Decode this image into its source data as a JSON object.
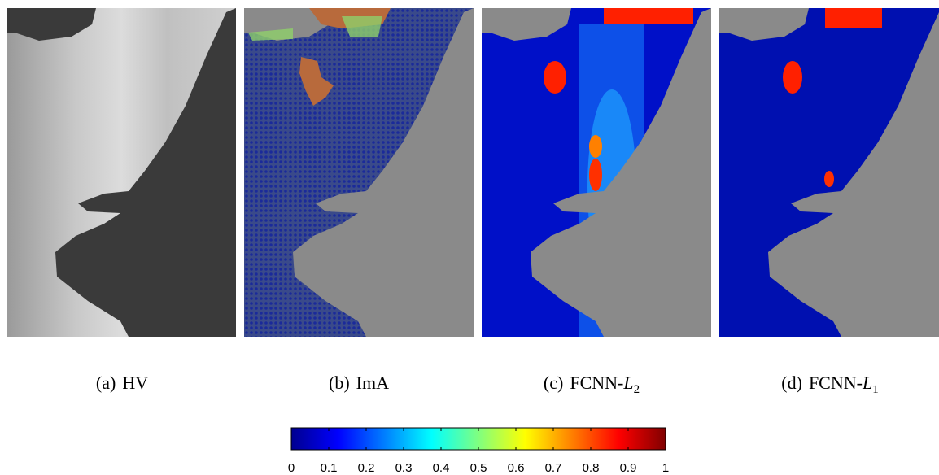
{
  "panels": [
    {
      "label": "(a)",
      "text": "HV"
    },
    {
      "label": "(b)",
      "text": "ImA"
    },
    {
      "label": "(c)",
      "text": "FCNN-",
      "var": "L",
      "sub": "2"
    },
    {
      "label": "(d)",
      "text": "FCNN-",
      "var": "L",
      "sub": "1"
    }
  ],
  "colorbar": {
    "lim": [
      0,
      1
    ],
    "ticks": [
      0,
      0.1,
      0.2,
      0.3,
      0.4,
      0.5,
      0.6,
      0.7,
      0.8,
      0.9,
      1
    ]
  }
}
